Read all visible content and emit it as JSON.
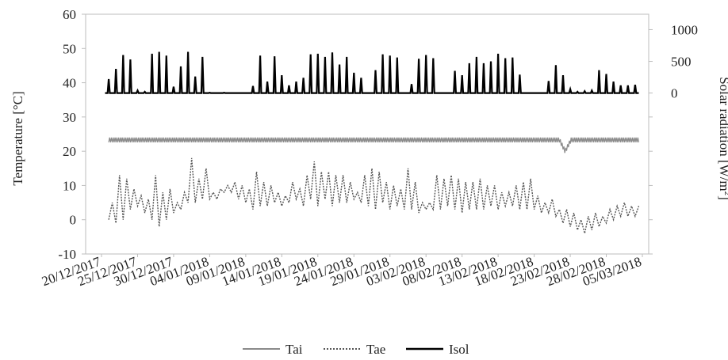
{
  "chart_data": {
    "type": "line",
    "title": "",
    "ylabel": "Temperature [°C]",
    "ylabel2_main": "Solar radiation [W/m",
    "ylabel2_sup": "2",
    "ylabel2_end": "]",
    "ylim": [
      -10,
      60
    ],
    "yticks": [
      -10,
      0,
      10,
      20,
      30,
      40,
      50,
      60
    ],
    "y2lim": [
      0,
      1000
    ],
    "y2ticks": [
      0,
      500,
      1000
    ],
    "x_start_day": 0,
    "x_end_day": 75,
    "x_tick_labels": [
      "20/12/2017",
      "25/12/2017",
      "30/12/2017",
      "04/01/2018",
      "09/01/2018",
      "14/01/2018",
      "19/01/2018",
      "24/01/2018",
      "29/01/2018",
      "03/02/2018",
      "08/02/2018",
      "13/02/2018",
      "18/02/2018",
      "23/02/2018",
      "28/02/2018",
      "05/03/2018"
    ],
    "x_tick_days": [
      0,
      5,
      10,
      15,
      20,
      25,
      30,
      35,
      40,
      45,
      50,
      55,
      60,
      65,
      70,
      75
    ],
    "legend_position": "bottom",
    "series": [
      {
        "name": "Tai",
        "axis": "left",
        "style": "solid-gray",
        "color": "#8a8a8a",
        "description_values": {
          "daily_mean": 23.3,
          "low_dip_day": 64.3,
          "low_dip_value": 20
        },
        "points": [
          [
            1,
            23.2
          ],
          [
            64,
            23.2
          ],
          [
            64.3,
            20.0
          ],
          [
            64.6,
            23.0
          ],
          [
            74.5,
            23.2
          ]
        ]
      },
      {
        "name": "Tae",
        "axis": "left",
        "style": "dotted",
        "color": "#555555",
        "daily_min_max": [
          [
            1,
            0,
            5
          ],
          [
            2,
            -1,
            13
          ],
          [
            3,
            0,
            12
          ],
          [
            4,
            3,
            9
          ],
          [
            5,
            4,
            7
          ],
          [
            6,
            2,
            6
          ],
          [
            7,
            0,
            13
          ],
          [
            8,
            -2,
            8
          ],
          [
            9,
            0,
            9
          ],
          [
            10,
            2,
            5
          ],
          [
            11,
            3,
            8
          ],
          [
            12,
            5,
            18
          ],
          [
            13,
            5,
            12
          ],
          [
            14,
            6,
            15
          ],
          [
            15,
            6,
            8
          ],
          [
            16,
            6,
            9
          ],
          [
            17,
            8,
            10
          ],
          [
            18,
            8,
            11
          ],
          [
            19,
            6,
            10
          ],
          [
            20,
            5,
            9
          ],
          [
            21,
            3,
            14
          ],
          [
            22,
            4,
            11
          ],
          [
            23,
            4,
            10
          ],
          [
            24,
            5,
            8
          ],
          [
            25,
            4,
            7
          ],
          [
            26,
            5,
            11
          ],
          [
            27,
            6,
            9
          ],
          [
            28,
            4,
            13
          ],
          [
            29,
            6,
            17
          ],
          [
            30,
            4,
            14
          ],
          [
            31,
            6,
            14
          ],
          [
            32,
            4,
            13
          ],
          [
            33,
            5,
            13
          ],
          [
            34,
            5,
            11
          ],
          [
            35,
            6,
            8
          ],
          [
            36,
            5,
            13
          ],
          [
            37,
            4,
            15
          ],
          [
            38,
            3,
            14
          ],
          [
            39,
            5,
            11
          ],
          [
            40,
            3,
            10
          ],
          [
            41,
            4,
            9
          ],
          [
            42,
            3,
            15
          ],
          [
            43,
            3,
            11
          ],
          [
            44,
            2,
            5
          ],
          [
            45,
            3,
            5
          ],
          [
            46,
            3,
            13
          ],
          [
            47,
            3,
            12
          ],
          [
            48,
            4,
            13
          ],
          [
            49,
            3,
            12
          ],
          [
            50,
            2,
            11
          ],
          [
            51,
            3,
            11
          ],
          [
            52,
            3,
            12
          ],
          [
            53,
            3,
            10
          ],
          [
            54,
            4,
            10
          ],
          [
            55,
            3,
            8
          ],
          [
            56,
            4,
            8
          ],
          [
            57,
            4,
            10
          ],
          [
            58,
            3,
            11
          ],
          [
            59,
            3,
            12
          ],
          [
            60,
            3,
            7
          ],
          [
            61,
            2,
            5
          ],
          [
            62,
            2,
            6
          ],
          [
            63,
            1,
            3
          ],
          [
            64,
            -1,
            3
          ],
          [
            65,
            -2,
            2
          ],
          [
            66,
            -3,
            0
          ],
          [
            67,
            -4,
            1
          ],
          [
            68,
            -3,
            2
          ],
          [
            69,
            -2,
            1
          ],
          [
            70,
            -1,
            3
          ],
          [
            71,
            0,
            4
          ],
          [
            72,
            1,
            5
          ],
          [
            73,
            1,
            4
          ],
          [
            74,
            1,
            4
          ]
        ]
      },
      {
        "name": "Isol",
        "axis": "right",
        "style": "solid-black",
        "color": "#000000",
        "daily_peaks": [
          [
            1,
            220
          ],
          [
            2,
            380
          ],
          [
            3,
            600
          ],
          [
            4,
            530
          ],
          [
            5,
            40
          ],
          [
            6,
            20
          ],
          [
            7,
            620
          ],
          [
            8,
            650
          ],
          [
            9,
            590
          ],
          [
            10,
            100
          ],
          [
            11,
            420
          ],
          [
            12,
            650
          ],
          [
            13,
            260
          ],
          [
            14,
            570
          ],
          [
            15,
            5
          ],
          [
            16,
            0
          ],
          [
            17,
            5
          ],
          [
            18,
            0
          ],
          [
            19,
            0
          ],
          [
            20,
            0
          ],
          [
            21,
            110
          ],
          [
            22,
            590
          ],
          [
            23,
            180
          ],
          [
            24,
            580
          ],
          [
            25,
            280
          ],
          [
            26,
            120
          ],
          [
            27,
            180
          ],
          [
            28,
            240
          ],
          [
            29,
            610
          ],
          [
            30,
            620
          ],
          [
            31,
            570
          ],
          [
            32,
            640
          ],
          [
            33,
            450
          ],
          [
            34,
            570
          ],
          [
            35,
            320
          ],
          [
            36,
            240
          ],
          [
            37,
            0
          ],
          [
            38,
            360
          ],
          [
            39,
            610
          ],
          [
            40,
            590
          ],
          [
            41,
            560
          ],
          [
            42,
            0
          ],
          [
            43,
            140
          ],
          [
            44,
            540
          ],
          [
            45,
            600
          ],
          [
            46,
            550
          ],
          [
            47,
            0
          ],
          [
            48,
            0
          ],
          [
            49,
            350
          ],
          [
            50,
            280
          ],
          [
            51,
            470
          ],
          [
            52,
            570
          ],
          [
            53,
            470
          ],
          [
            54,
            500
          ],
          [
            55,
            620
          ],
          [
            56,
            550
          ],
          [
            57,
            560
          ],
          [
            58,
            290
          ],
          [
            59,
            0
          ],
          [
            60,
            0
          ],
          [
            61,
            0
          ],
          [
            62,
            190
          ],
          [
            63,
            440
          ],
          [
            64,
            280
          ],
          [
            65,
            60
          ],
          [
            66,
            20
          ],
          [
            67,
            30
          ],
          [
            68,
            40
          ],
          [
            69,
            360
          ],
          [
            70,
            300
          ],
          [
            71,
            180
          ],
          [
            72,
            120
          ],
          [
            73,
            120
          ],
          [
            74,
            130
          ]
        ]
      }
    ]
  }
}
